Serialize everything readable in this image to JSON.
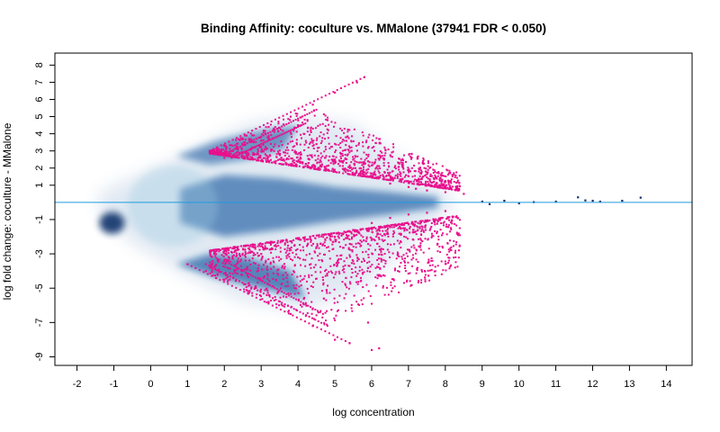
{
  "chart_data": {
    "type": "scatter",
    "title": "Binding Affinity: coculture vs. MMalone (37941 FDR < 0.050)",
    "xlabel": "log concentration",
    "ylabel": "log fold change: coculture - MMalone",
    "xlim": [
      -2.6,
      14.7
    ],
    "ylim": [
      -9.5,
      8.7
    ],
    "xticks": [
      "-2",
      "-1",
      "0",
      "1",
      "2",
      "3",
      "4",
      "5",
      "6",
      "7",
      "8",
      "9",
      "10",
      "11",
      "12",
      "13",
      "14"
    ],
    "yticks": [
      "8",
      "7",
      "6",
      "5",
      "4",
      "3",
      "2",
      "1",
      "-1",
      "-3",
      "-5",
      "-7",
      "-9"
    ],
    "reference_line_y": 0,
    "grid": false,
    "legend": "none",
    "colors": {
      "significant_points": "#e8118c",
      "density": "#08519c",
      "sparse_points": "#08306b",
      "reference_line": "#1f9be0"
    },
    "density_regions": [
      {
        "note": "smoothed density of all sites",
        "x_range": [
          -1.4,
          8.2
        ],
        "y_range": [
          -6.5,
          4.8
        ]
      }
    ],
    "series": [
      {
        "name": "",
        "color": "#e8118c",
        "sample_points": [
          [
            1.6,
            3.0
          ],
          [
            2.0,
            3.3
          ],
          [
            2.6,
            3.9
          ],
          [
            3.2,
            4.4
          ],
          [
            3.8,
            5.0
          ],
          [
            4.4,
            5.7
          ],
          [
            5.0,
            6.4
          ],
          [
            5.6,
            7.0
          ],
          [
            5.8,
            7.3
          ],
          [
            2.0,
            2.6
          ],
          [
            3.0,
            3.6
          ],
          [
            4.0,
            4.5
          ],
          [
            4.5,
            3.4
          ],
          [
            5.0,
            2.5
          ],
          [
            5.5,
            2.0
          ],
          [
            6.0,
            1.5
          ],
          [
            6.5,
            1.1
          ],
          [
            7.0,
            0.9
          ],
          [
            7.5,
            0.7
          ],
          [
            8.0,
            0.6
          ],
          [
            8.5,
            0.5
          ],
          [
            4.8,
            4.8
          ],
          [
            5.3,
            3.8
          ],
          [
            5.9,
            2.4
          ],
          [
            6.3,
            1.6
          ],
          [
            6.8,
            1.2
          ],
          [
            7.2,
            0.8
          ],
          [
            1.0,
            -3.6
          ],
          [
            1.5,
            -4.0
          ],
          [
            2.0,
            -4.5
          ],
          [
            2.6,
            -5.1
          ],
          [
            3.2,
            -5.8
          ],
          [
            3.8,
            -6.5
          ],
          [
            4.4,
            -7.2
          ],
          [
            5.0,
            -8.0
          ],
          [
            5.4,
            -8.2
          ],
          [
            2.0,
            -2.8
          ],
          [
            3.0,
            -3.0
          ],
          [
            4.0,
            -3.2
          ],
          [
            4.5,
            -2.6
          ],
          [
            5.0,
            -2.0
          ],
          [
            5.5,
            -1.6
          ],
          [
            6.0,
            -1.2
          ],
          [
            6.5,
            -0.9
          ],
          [
            7.0,
            -0.7
          ],
          [
            7.5,
            -0.6
          ],
          [
            8.0,
            -0.5
          ],
          [
            4.7,
            -5.6
          ],
          [
            5.3,
            -4.4
          ],
          [
            5.8,
            -3.4
          ],
          [
            6.2,
            -8.5
          ],
          [
            6.0,
            -8.6
          ],
          [
            5.9,
            -7.0
          ]
        ]
      },
      {
        "name": "",
        "color": "#08306b",
        "sample_points": [
          [
            9.0,
            0.05
          ],
          [
            9.2,
            -0.1
          ],
          [
            9.6,
            0.1
          ],
          [
            10.0,
            -0.05
          ],
          [
            10.4,
            0.02
          ],
          [
            11.0,
            0.05
          ],
          [
            11.6,
            0.3
          ],
          [
            11.8,
            0.12
          ],
          [
            12.0,
            0.1
          ],
          [
            12.2,
            0.05
          ],
          [
            12.8,
            0.1
          ],
          [
            13.3,
            0.28
          ]
        ]
      }
    ]
  }
}
